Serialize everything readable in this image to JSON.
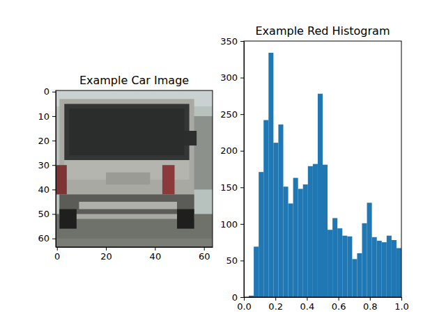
{
  "chart_data": [
    {
      "type": "image",
      "title": "Example Car Image",
      "xlim": [
        -0.5,
        63.5
      ],
      "ylim": [
        63.5,
        -0.5
      ],
      "xticks": [
        0,
        20,
        40,
        60
      ],
      "yticks": [
        0,
        10,
        20,
        30,
        40,
        50,
        60
      ]
    },
    {
      "type": "histogram",
      "title": "Example Red Histogram",
      "color": "#1f77b4",
      "bins": [
        0,
        0.03125,
        0.0625,
        0.09375,
        0.125,
        0.15625,
        0.1875,
        0.21875,
        0.25,
        0.28125,
        0.3125,
        0.34375,
        0.375,
        0.40625,
        0.4375,
        0.46875,
        0.5,
        0.53125,
        0.5625,
        0.59375,
        0.625,
        0.65625,
        0.6875,
        0.71875,
        0.75,
        0.78125,
        0.8125,
        0.84375,
        0.875,
        0.90625,
        0.9375,
        0.96875,
        1
      ],
      "counts": [
        0,
        2,
        69,
        171,
        242,
        334,
        211,
        236,
        151,
        128,
        163,
        148,
        154,
        179,
        182,
        278,
        181,
        92,
        108,
        94,
        84,
        83,
        52,
        60,
        101,
        129,
        82,
        77,
        75,
        84,
        78,
        67
      ],
      "xlim": [
        0,
        1
      ],
      "xticks": [
        {
          "value": 0,
          "label": "0.0"
        },
        0.2,
        0.4,
        0.6,
        0.8,
        {
          "value": 1,
          "label": "1.0"
        }
      ],
      "ylim": [
        0,
        350
      ],
      "yticks": [
        0,
        50,
        100,
        150,
        200,
        250,
        300,
        350
      ]
    }
  ]
}
